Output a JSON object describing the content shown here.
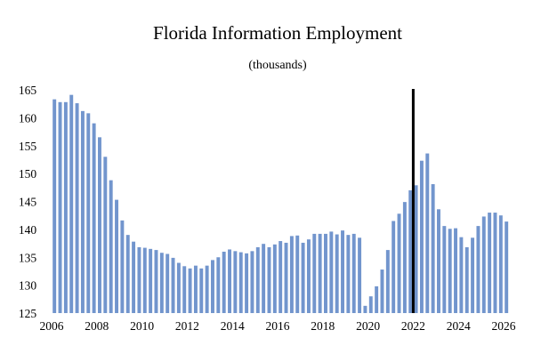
{
  "chart_data": {
    "type": "bar",
    "title": "Florida Information Employment",
    "subtitle": "(thousands)",
    "xlabel": "",
    "ylabel": "",
    "ylim": [
      125,
      165
    ],
    "yticks": [
      125,
      130,
      135,
      140,
      145,
      150,
      155,
      160,
      165
    ],
    "xlim": [
      2006,
      2026
    ],
    "xticks": [
      2006,
      2008,
      2010,
      2012,
      2014,
      2016,
      2018,
      2020,
      2022,
      2024,
      2026
    ],
    "grid": false,
    "bar_color": "#7295cd",
    "marker_color": "#000000",
    "vertical_marker": 2022,
    "start_year": 2006,
    "periods_per_year": 4,
    "values": [
      163.3,
      162.8,
      162.8,
      164.1,
      162.6,
      161.2,
      160.8,
      159.0,
      156.5,
      153.0,
      148.8,
      145.3,
      141.6,
      139.0,
      137.8,
      136.8,
      136.7,
      136.5,
      136.3,
      135.8,
      135.6,
      134.9,
      134.0,
      133.4,
      133.0,
      133.5,
      133.0,
      133.5,
      134.5,
      135.0,
      136.0,
      136.4,
      136.1,
      135.9,
      135.7,
      136.1,
      136.8,
      137.4,
      136.8,
      137.3,
      137.9,
      137.6,
      138.8,
      138.9,
      137.6,
      138.2,
      139.2,
      139.2,
      139.2,
      139.6,
      139.1,
      139.8,
      139.0,
      139.2,
      138.5,
      126.3,
      128.0,
      129.8,
      132.8,
      136.3,
      141.5,
      142.8,
      144.9,
      147.0,
      147.9,
      152.3,
      153.6,
      148.1,
      143.6,
      140.6,
      140.1,
      140.2,
      138.6,
      136.8,
      138.5,
      140.6,
      142.3,
      143.0,
      143.0,
      142.5,
      141.4
    ]
  }
}
